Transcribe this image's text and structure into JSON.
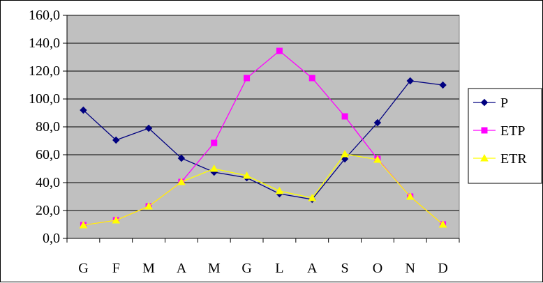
{
  "chart_data": {
    "type": "line",
    "categories": [
      "G",
      "F",
      "M",
      "A",
      "M",
      "G",
      "L",
      "A",
      "S",
      "O",
      "N",
      "D"
    ],
    "ylim": [
      0,
      160
    ],
    "yticks": [
      "0,0",
      "20,0",
      "40,0",
      "60,0",
      "80,0",
      "100,0",
      "120,0",
      "140,0",
      "160,0"
    ],
    "grid": true,
    "legend_position": "right",
    "plot_background": "#c0c0c0",
    "series": [
      {
        "name": "P",
        "color": "#000080",
        "marker": "diamond",
        "values": [
          92,
          70.5,
          79,
          57.5,
          47.5,
          43.5,
          32,
          28,
          57,
          83,
          113,
          110
        ]
      },
      {
        "name": "ETP",
        "color": "#ff00ff",
        "marker": "square",
        "values": [
          9.5,
          13,
          23,
          40.5,
          68.5,
          115,
          134.5,
          115,
          87.5,
          57,
          30,
          10
        ]
      },
      {
        "name": "ETR",
        "color": "#ffff00",
        "marker": "triangle",
        "values": [
          9.5,
          13,
          23,
          40.5,
          50,
          45,
          34,
          29,
          60.5,
          56.5,
          30,
          10
        ]
      }
    ]
  }
}
